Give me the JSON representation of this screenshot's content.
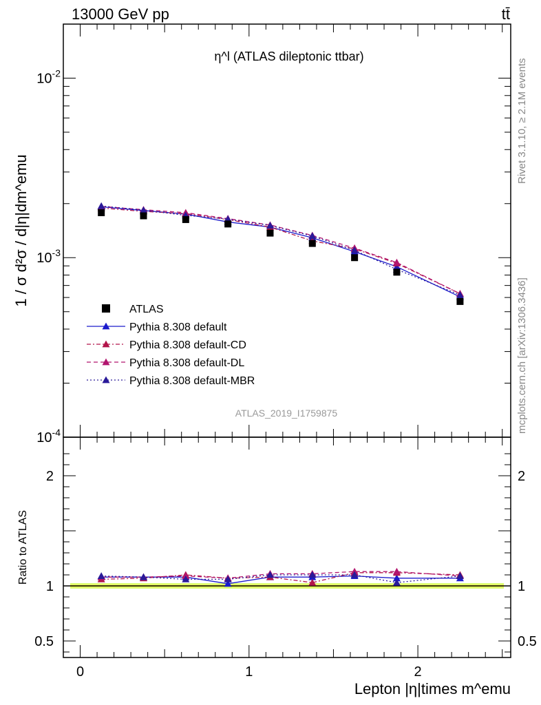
{
  "header": {
    "left": "13000 GeV pp",
    "right": "tt̄",
    "right_side_text": "Rivet 3.1.10, ≥ 2.1M events",
    "right_side_text2": "mcplots.cern.ch [arXiv:1306.3436]"
  },
  "chart_data": {
    "type": "line",
    "title": "η^l (ATLAS dileptonic ttbar)",
    "watermark": "ATLAS_2019_I1759875",
    "xlabel": "Lepton |η|times m^emu",
    "ylabel": "1 / σ d²σ / d|η|dm^emu",
    "ylabel_ratio": "Ratio to ATLAS",
    "log_y": true,
    "xlim": [
      -0.1,
      2.55
    ],
    "ylim": [
      0.0001,
      0.02
    ],
    "ratio_ylim": [
      0.35,
      2.35
    ],
    "x_ticks": [
      "0",
      "1",
      "2"
    ],
    "y_ticks": [
      "10^-4",
      "10^-3",
      "10^-2"
    ],
    "ratio_ticks": [
      "0.5",
      "1",
      "2"
    ],
    "x": [
      0.125,
      0.375,
      0.625,
      0.875,
      1.125,
      1.375,
      1.625,
      1.875,
      2.25
    ],
    "reference": {
      "name": "ATLAS",
      "values": [
        0.00178,
        0.00171,
        0.00163,
        0.00154,
        0.00137,
        0.0012,
        0.001,
        0.00083,
        0.00057
      ],
      "color": "#000000"
    },
    "series": [
      {
        "name": "Pythia 8.308 default",
        "color": "#1a1acc",
        "dash": "solid",
        "values": [
          0.00192,
          0.00183,
          0.00175,
          0.00158,
          0.00148,
          0.00129,
          0.00108,
          0.00089,
          0.000605
        ],
        "ratio": [
          1.08,
          1.08,
          1.08,
          1.02,
          1.08,
          1.08,
          1.09,
          1.07,
          1.07
        ]
      },
      {
        "name": "Pythia 8.308 default-CD",
        "color": "#b2154a",
        "dash": "dashdot",
        "values": [
          0.00189,
          0.00181,
          0.00176,
          0.00163,
          0.00148,
          0.00124,
          0.00112,
          0.00093,
          0.00063
        ],
        "ratio": [
          1.06,
          1.07,
          1.1,
          1.07,
          1.08,
          1.03,
          1.12,
          1.12,
          1.1
        ]
      },
      {
        "name": "Pythia 8.308 default-DL",
        "color": "#b2156e",
        "dash": "dashed",
        "values": [
          0.00193,
          0.00185,
          0.00178,
          0.00165,
          0.00152,
          0.00133,
          0.00113,
          0.00094,
          0.00063
        ],
        "ratio": [
          1.08,
          1.08,
          1.09,
          1.07,
          1.11,
          1.11,
          1.13,
          1.13,
          1.09
        ]
      },
      {
        "name": "Pythia 8.308 default-MBR",
        "color": "#2a1a99",
        "dash": "dotted",
        "values": [
          0.00194,
          0.00184,
          0.00172,
          0.00164,
          0.00151,
          0.00132,
          0.0011,
          0.00086,
          0.00062
        ],
        "ratio": [
          1.09,
          1.08,
          1.06,
          1.06,
          1.1,
          1.1,
          1.1,
          1.03,
          1.09
        ]
      }
    ],
    "legend_position": "lower-left",
    "uncertainty_band_color": "#d6ff5c"
  }
}
